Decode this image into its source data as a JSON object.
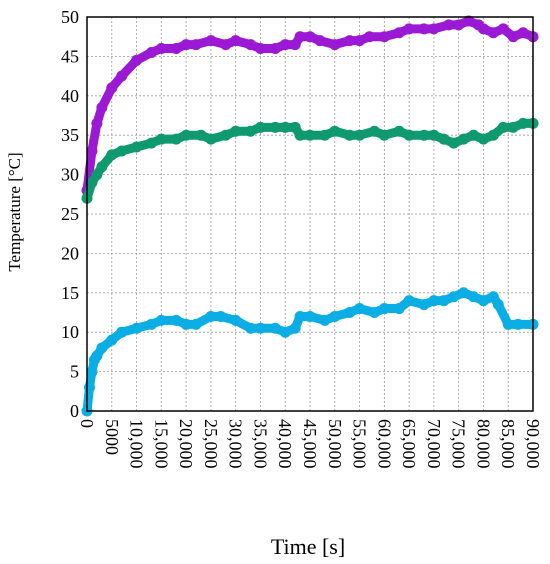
{
  "chart_data": {
    "type": "line",
    "title": "",
    "xlabel": "Time [s]",
    "ylabel": "Temperature [°C]",
    "xlim": [
      0,
      90000
    ],
    "ylim": [
      0,
      50
    ],
    "grid": true,
    "legend": "none",
    "xticks": [
      0,
      5000,
      10000,
      15000,
      20000,
      25000,
      30000,
      35000,
      40000,
      45000,
      50000,
      55000,
      60000,
      65000,
      70000,
      75000,
      80000,
      85000,
      90000
    ],
    "xtick_labels": [
      "0",
      "5000",
      "10,000",
      "15,000",
      "20,000",
      "25,000",
      "30,000",
      "35,000",
      "40,000",
      "45,000",
      "50,000",
      "55,000",
      "60,000",
      "65,000",
      "70,000",
      "75,000",
      "80,000",
      "85,000",
      "90,000"
    ],
    "yticks": [
      0,
      5,
      10,
      15,
      20,
      25,
      30,
      35,
      40,
      45,
      50
    ],
    "ytick_labels": [
      "0",
      "5",
      "10",
      "15",
      "20",
      "25",
      "30",
      "35",
      "40",
      "45",
      "50"
    ],
    "series": [
      {
        "color": "#9b19d4",
        "x": [
          0,
          1000,
          2000,
          3000,
          5000,
          7000,
          10000,
          13000,
          15000,
          18000,
          20000,
          22000,
          25000,
          28000,
          30000,
          33000,
          35000,
          38000,
          40000,
          42000,
          43000,
          45000,
          47000,
          50000,
          53000,
          55000,
          57000,
          60000,
          63000,
          65000,
          68000,
          70000,
          73000,
          75000,
          77000,
          79000,
          80000,
          82000,
          84000,
          86000,
          88000,
          90000
        ],
        "y": [
          28,
          33,
          36.5,
          38.5,
          41,
          42.5,
          44.5,
          45.5,
          46,
          46,
          46.5,
          46.5,
          47,
          46.5,
          47,
          46.5,
          46,
          46,
          46.5,
          46.5,
          47.5,
          47.5,
          47,
          46.5,
          47,
          47,
          47.5,
          47.5,
          48,
          48.5,
          48.5,
          48.5,
          49,
          49,
          49.5,
          49,
          48.5,
          48,
          48.5,
          47.5,
          48,
          47.5
        ]
      },
      {
        "color": "#0e9a6e",
        "x": [
          0,
          1000,
          2000,
          3000,
          5000,
          7000,
          10000,
          13000,
          15000,
          18000,
          20000,
          23000,
          25000,
          28000,
          30000,
          33000,
          35000,
          38000,
          40000,
          42000,
          43000,
          45000,
          48000,
          50000,
          53000,
          55000,
          58000,
          60000,
          63000,
          65000,
          68000,
          70000,
          72000,
          74000,
          76000,
          78000,
          80000,
          82000,
          84000,
          86000,
          88000,
          90000
        ],
        "y": [
          27,
          29,
          30,
          31,
          32.5,
          33,
          33.5,
          34,
          34.5,
          34.5,
          35,
          35,
          34.5,
          35,
          35.5,
          35.5,
          36,
          36,
          36,
          36,
          35,
          35,
          35,
          35.5,
          35,
          35,
          35.5,
          35,
          35.5,
          35,
          35,
          35,
          34.5,
          34,
          34.5,
          35,
          34.5,
          35,
          36,
          36,
          36.5,
          36.5
        ]
      },
      {
        "color": "#0aaee4",
        "x": [
          0,
          500,
          1000,
          1500,
          2000,
          3000,
          5000,
          7000,
          10000,
          13000,
          15000,
          18000,
          20000,
          22000,
          25000,
          27000,
          30000,
          33000,
          35000,
          38000,
          40000,
          42000,
          43000,
          45000,
          48000,
          50000,
          53000,
          55000,
          58000,
          60000,
          63000,
          65000,
          68000,
          70000,
          72000,
          74000,
          76000,
          78000,
          80000,
          82000,
          83000,
          85000,
          87000,
          90000
        ],
        "y": [
          0,
          3,
          5,
          6.5,
          7,
          8,
          9,
          10,
          10.5,
          11,
          11.5,
          11.5,
          11,
          11,
          12,
          12,
          11.5,
          10.5,
          10.5,
          10.5,
          10,
          10.5,
          12,
          12,
          11.5,
          12,
          12.5,
          13,
          12.5,
          13,
          13,
          14,
          13.5,
          14,
          14,
          14.5,
          15,
          14.5,
          14,
          14.5,
          13.5,
          11,
          11,
          11
        ]
      }
    ]
  }
}
